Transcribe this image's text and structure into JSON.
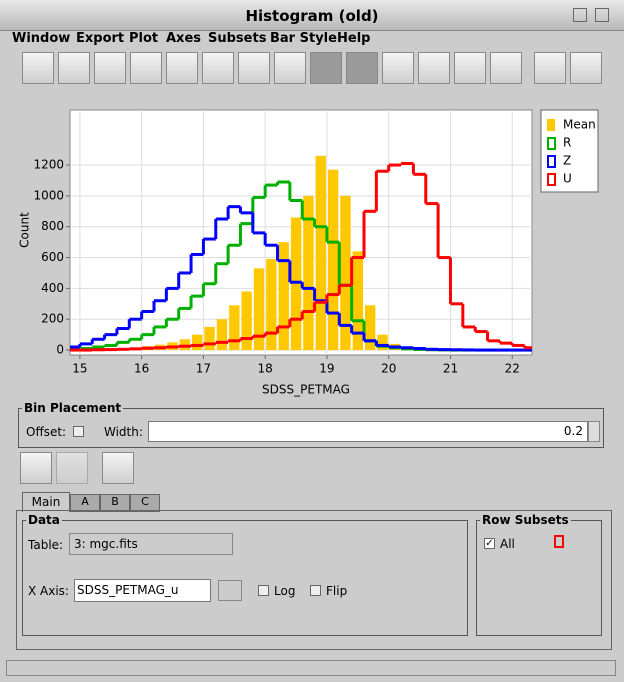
{
  "window_title": "Histogram (old)",
  "menu": [
    "Window",
    "Export",
    "Plot",
    "Axes",
    "Subsets",
    "Bar Style",
    "Help"
  ],
  "chart_data": {
    "type": "histogram",
    "xlabel": "SDSS_PETMAG",
    "ylabel": "Count",
    "bins": [
      14.8,
      15,
      15.2,
      15.4,
      15.6,
      15.8,
      16,
      16.2,
      16.4,
      16.6,
      16.8,
      17,
      17.2,
      17.4,
      17.6,
      17.8,
      18,
      18.2,
      18.4,
      18.6,
      18.8,
      19,
      19.2,
      19.4,
      19.6,
      19.8,
      20,
      20.2,
      20.4,
      20.6,
      20.8,
      21,
      21.2,
      21.4,
      21.6,
      21.8,
      22,
      22.2,
      22.4
    ],
    "series": [
      {
        "name": "Mean",
        "color": "#ffc800",
        "style": "bars",
        "values": [
          0,
          2,
          4,
          6,
          10,
          15,
          25,
          35,
          50,
          70,
          100,
          150,
          200,
          290,
          380,
          530,
          590,
          700,
          860,
          1000,
          1260,
          1170,
          1000,
          640,
          290,
          100,
          40,
          15,
          5,
          2,
          1,
          0,
          0,
          0,
          0,
          0,
          0,
          0
        ]
      },
      {
        "name": "R",
        "color": "#00b000",
        "style": "steps",
        "values": [
          5,
          10,
          20,
          30,
          50,
          70,
          100,
          150,
          200,
          270,
          350,
          430,
          560,
          680,
          820,
          990,
          1070,
          1090,
          970,
          850,
          800,
          700,
          420,
          190,
          60,
          25,
          15,
          8,
          4,
          2,
          1,
          0,
          0,
          0,
          0,
          0,
          0,
          0
        ]
      },
      {
        "name": "Z",
        "color": "#0000ff",
        "style": "steps",
        "values": [
          20,
          40,
          70,
          100,
          140,
          200,
          250,
          320,
          400,
          500,
          620,
          720,
          850,
          930,
          890,
          760,
          680,
          580,
          440,
          400,
          320,
          240,
          160,
          110,
          60,
          30,
          20,
          15,
          10,
          5,
          3,
          2,
          1,
          0,
          0,
          0,
          0,
          0
        ]
      },
      {
        "name": "U",
        "color": "#ff0000",
        "style": "steps",
        "values": [
          0,
          0,
          2,
          3,
          5,
          8,
          12,
          15,
          20,
          25,
          30,
          40,
          50,
          60,
          75,
          90,
          110,
          150,
          200,
          250,
          310,
          360,
          420,
          600,
          900,
          1160,
          1200,
          1210,
          1140,
          950,
          600,
          300,
          150,
          120,
          60,
          45,
          30,
          15
        ]
      }
    ],
    "xlim": [
      14.84,
      22.32
    ],
    "ylim": [
      -32,
      1557
    ],
    "xticks": [
      15,
      16,
      17,
      18,
      19,
      20,
      21,
      22
    ],
    "yticks": [
      0,
      200,
      400,
      600,
      800,
      1000,
      1200
    ],
    "grid": true
  },
  "bin_placement": {
    "title": "Bin Placement",
    "offset_label": "Offset:",
    "width_label": "Width:",
    "width_value": "0.2"
  },
  "tabs": [
    "Main",
    "A",
    "B",
    "C"
  ],
  "data_panel": {
    "title": "Data",
    "table_label": "Table:",
    "table_value": "3: mgc.fits",
    "xaxis_label": "X Axis:",
    "xaxis_value": "SDSS_PETMAG_u",
    "log_label": "Log",
    "flip_label": "Flip"
  },
  "row_subsets": {
    "title": "Row Subsets",
    "item": "All"
  }
}
